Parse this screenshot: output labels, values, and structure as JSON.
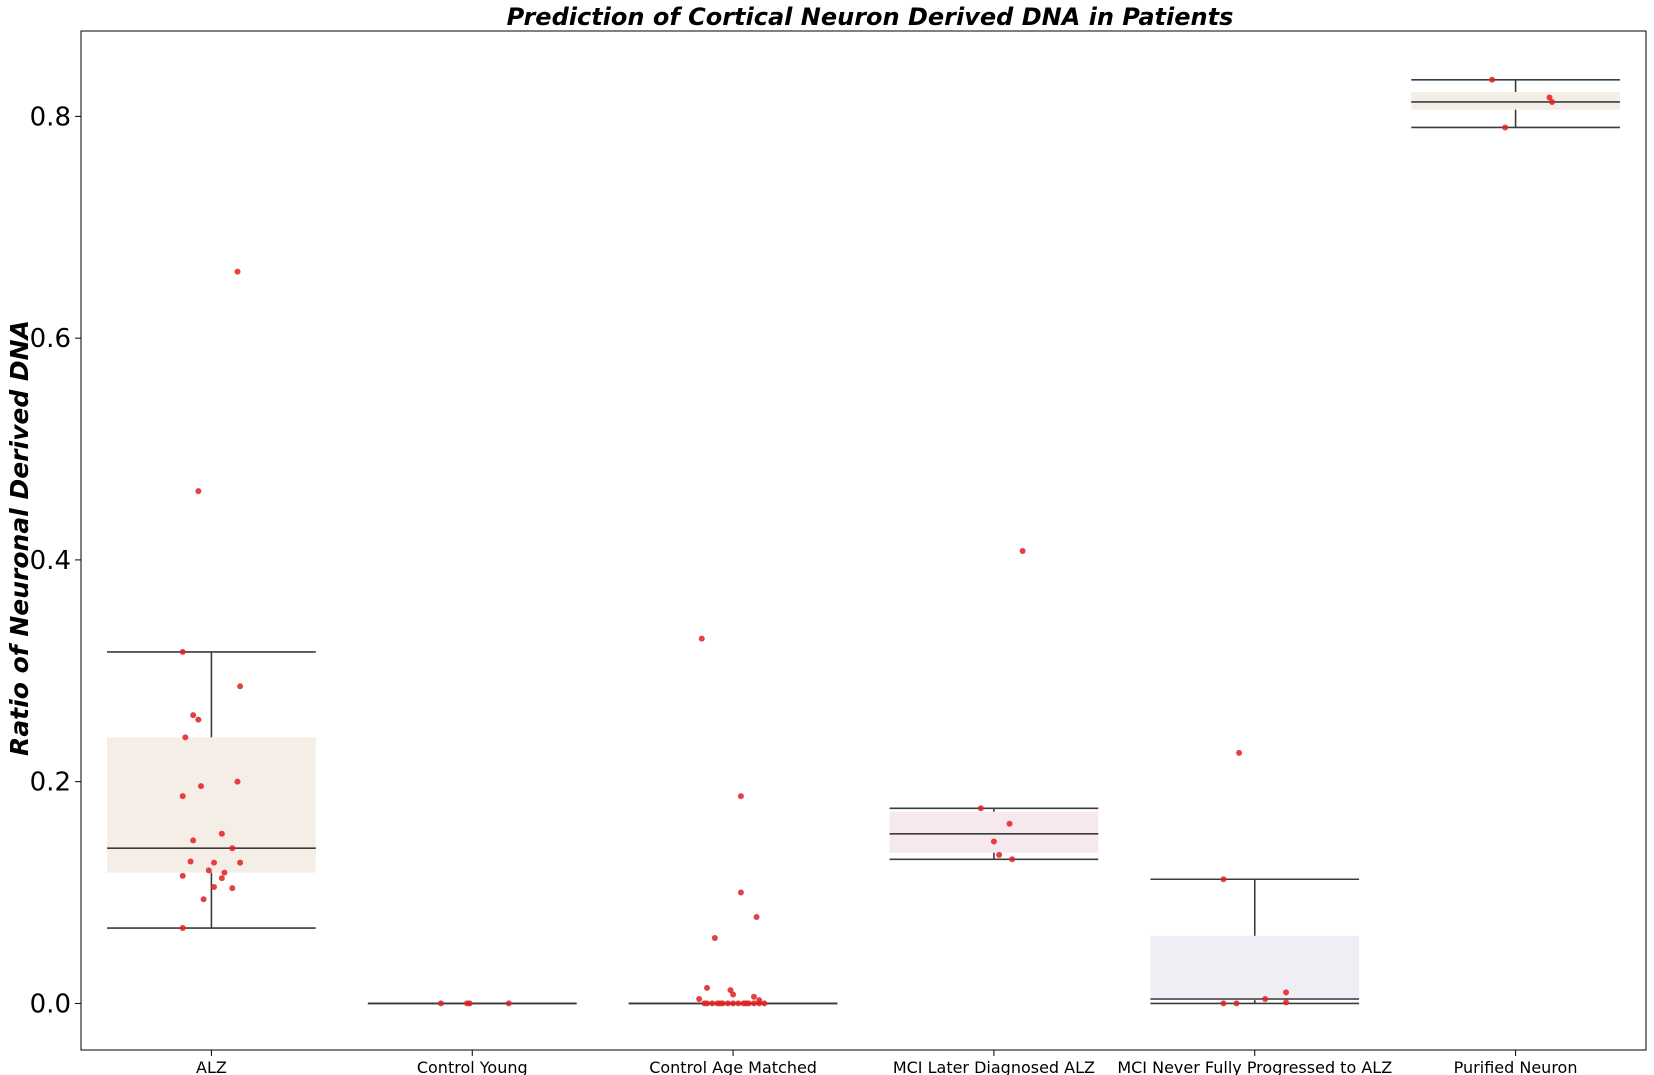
{
  "chart_data": {
    "type": "box",
    "title": "Prediction of Cortical Neuron Derived DNA in Patients",
    "xlabel": "",
    "ylabel": "Ratio of Neuronal Derived DNA",
    "ylim": [
      -0.042,
      0.877
    ],
    "yticks": [
      "0.0",
      "0.2",
      "0.4",
      "0.6",
      "0.8"
    ],
    "ytick_values": [
      0.0,
      0.2,
      0.4,
      0.6,
      0.8
    ],
    "grid": false,
    "point_color": "#e02020",
    "categories": [
      "ALZ",
      "Control Young",
      "Control Age Matched",
      "MCI Later Diagnosed ALZ",
      "MCI Never Fully Progressed to ALZ",
      "Purified Neuron"
    ],
    "boxes": [
      {
        "category": "ALZ",
        "color": "#f4eee6",
        "whisker_low": 0.068,
        "q1": 0.118,
        "median": 0.14,
        "q3": 0.24,
        "whisker_high": 0.317,
        "points": [
          0.66,
          0.462,
          0.317,
          0.286,
          0.26,
          0.256,
          0.24,
          0.2,
          0.196,
          0.187,
          0.153,
          0.147,
          0.14,
          0.128,
          0.127,
          0.127,
          0.12,
          0.118,
          0.115,
          0.113,
          0.105,
          0.104,
          0.094,
          0.068
        ],
        "offsets": [
          0.1,
          -0.05,
          -0.11,
          0.11,
          -0.07,
          -0.05,
          -0.1,
          0.1,
          -0.04,
          -0.11,
          0.04,
          -0.07,
          0.08,
          -0.08,
          0.01,
          0.11,
          -0.01,
          0.05,
          -0.11,
          0.04,
          0.01,
          0.08,
          -0.03,
          -0.11
        ]
      },
      {
        "category": "Control Young",
        "color": "#f4eee6",
        "whisker_low": 0.0,
        "q1": 0.0,
        "median": 0.0,
        "q3": 0.0,
        "whisker_high": 0.0,
        "points": [
          0.0,
          0.0,
          0.0,
          0.0
        ],
        "offsets": [
          -0.12,
          -0.02,
          -0.01,
          0.14
        ]
      },
      {
        "category": "Control Age Matched",
        "color": "#f4eee6",
        "whisker_low": 0.0,
        "q1": 0.0,
        "median": 0.0,
        "q3": 0.0,
        "whisker_high": 0.0,
        "points": [
          0.329,
          0.187,
          0.1,
          0.078,
          0.059,
          0.014,
          0.012,
          0.008,
          0.006,
          0.004,
          0.003,
          0.0,
          0.0,
          0.0,
          0.0,
          0.0,
          0.0,
          0.0,
          0.0,
          0.0,
          0.0,
          0.0,
          0.0,
          0.0,
          0.0,
          0.0
        ],
        "offsets": [
          -0.12,
          0.03,
          0.03,
          0.09,
          -0.07,
          -0.1,
          -0.01,
          0.0,
          0.08,
          -0.13,
          0.1,
          -0.1,
          -0.08,
          -0.06,
          -0.04,
          -0.02,
          0.0,
          0.02,
          0.04,
          0.06,
          0.08,
          0.1,
          0.12,
          -0.11,
          -0.05,
          0.05
        ]
      },
      {
        "category": "MCI Later Diagnosed ALZ",
        "color": "#f6e8ee",
        "whisker_low": 0.13,
        "q1": 0.136,
        "median": 0.153,
        "q3": 0.173,
        "whisker_high": 0.176,
        "points": [
          0.408,
          0.176,
          0.162,
          0.146,
          0.134,
          0.13
        ],
        "offsets": [
          0.11,
          -0.05,
          0.06,
          0.0,
          0.02,
          0.07
        ]
      },
      {
        "category": "MCI Never Fully Progressed to ALZ",
        "color": "#efeef4",
        "whisker_low": 0.0,
        "q1": 0.003,
        "median": 0.004,
        "q3": 0.061,
        "whisker_high": 0.112,
        "points": [
          0.226,
          0.112,
          0.01,
          0.004,
          0.0,
          0.0,
          0.001
        ],
        "offsets": [
          -0.06,
          -0.12,
          0.12,
          0.04,
          -0.12,
          -0.07,
          0.12
        ]
      },
      {
        "category": "Purified Neuron",
        "color": "#f4eee6",
        "whisker_low": 0.79,
        "q1": 0.806,
        "median": 0.813,
        "q3": 0.822,
        "whisker_high": 0.833,
        "points": [
          0.833,
          0.817,
          0.813,
          0.79
        ],
        "offsets": [
          -0.09,
          0.13,
          0.14,
          -0.04
        ]
      }
    ]
  }
}
